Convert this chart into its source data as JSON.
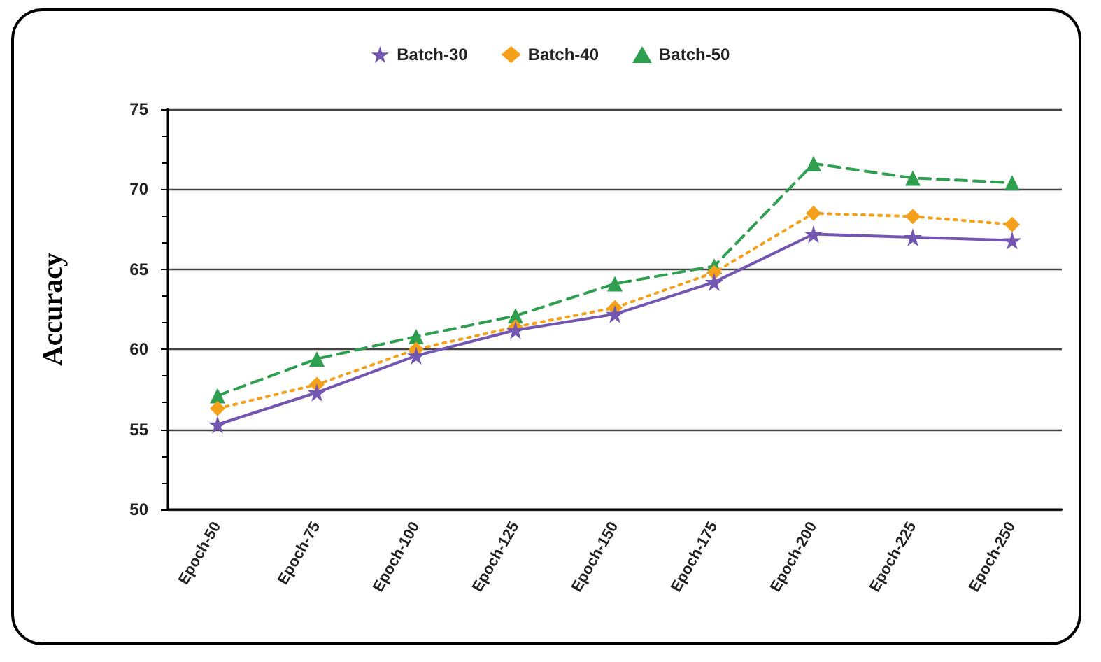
{
  "chart_data": {
    "type": "line",
    "ylabel": "Accuracy",
    "categories": [
      "Epoch-50",
      "Epoch-75",
      "Epoch-100",
      "Epoch-125",
      "Epoch-150",
      "Epoch-175",
      "Epoch-200",
      "Epoch-225",
      "Epoch-250"
    ],
    "series": [
      {
        "name": "Batch-30",
        "color": "#7256b0",
        "marker": "star",
        "line_style": "solid",
        "values": [
          55.3,
          57.3,
          59.6,
          61.2,
          62.2,
          64.2,
          67.2,
          67.0,
          66.8
        ]
      },
      {
        "name": "Batch-40",
        "color": "#f5a01a",
        "marker": "diamond",
        "line_style": "dotted",
        "values": [
          56.3,
          57.8,
          60.0,
          61.4,
          62.6,
          64.8,
          68.5,
          68.3,
          67.8
        ]
      },
      {
        "name": "Batch-50",
        "color": "#2e9e4f",
        "marker": "triangle",
        "line_style": "dashed",
        "values": [
          57.1,
          59.4,
          60.8,
          62.1,
          64.1,
          65.2,
          71.6,
          70.7,
          70.4
        ]
      }
    ],
    "ylim": [
      50,
      75
    ],
    "yticks": [
      50,
      55,
      60,
      65,
      70,
      75
    ],
    "grid": "y",
    "legend": "top"
  }
}
